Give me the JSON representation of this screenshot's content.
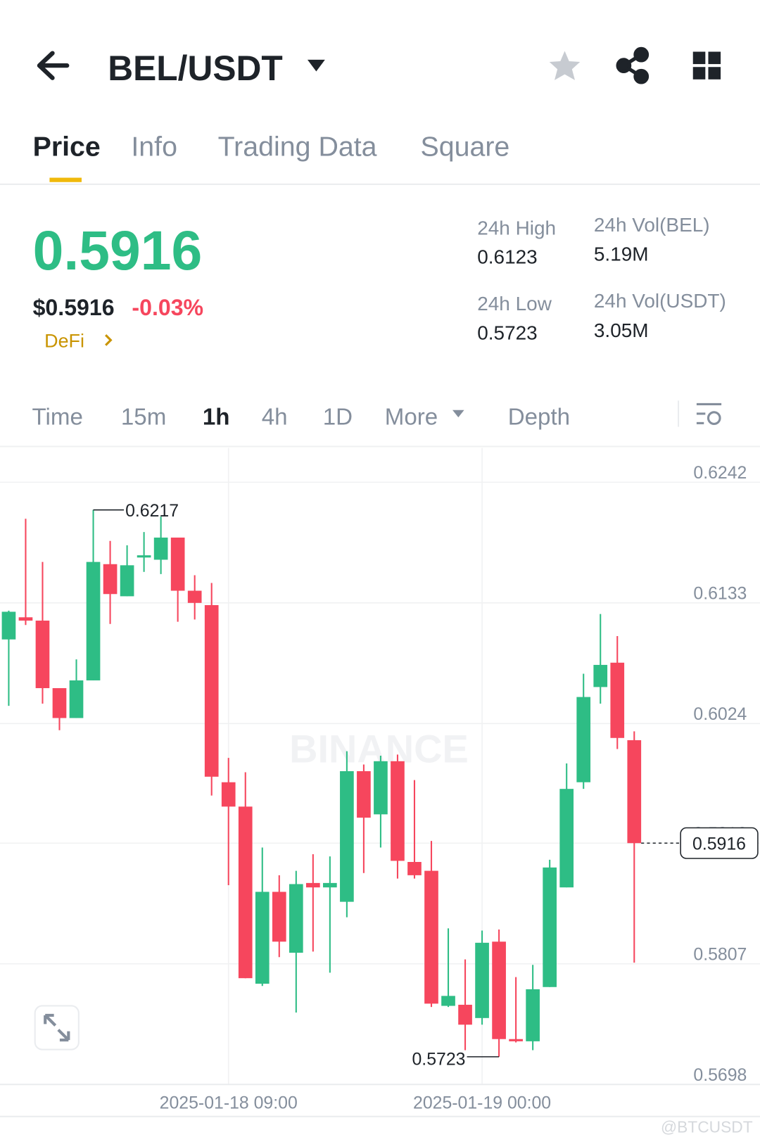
{
  "header": {
    "pair": "BEL/USDT"
  },
  "tabs": [
    "Price",
    "Info",
    "Trading Data",
    "Square"
  ],
  "ticker": {
    "price": "0.5916",
    "usd_price": "$0.5916",
    "change": "-0.03%",
    "tag": "DeFi"
  },
  "stats": [
    {
      "label": "24h High",
      "value": "0.6123"
    },
    {
      "label": "24h Vol(BEL)",
      "value": "5.19M"
    },
    {
      "label": "24h Low",
      "value": "0.5723"
    },
    {
      "label": "24h Vol(USDT)",
      "value": "3.05M"
    }
  ],
  "intervals": [
    "Time",
    "15m",
    "1h",
    "4h",
    "1D",
    "More",
    "Depth"
  ],
  "watermark": "BINANCE",
  "credit": "@BTCUSDT",
  "chart_data": {
    "type": "candlestick",
    "categories": [
      null,
      null,
      null,
      null,
      null,
      null,
      null,
      null,
      null,
      null,
      null,
      null,
      null,
      "2025-01-18 09:00",
      null,
      null,
      null,
      null,
      null,
      null,
      null,
      null,
      null,
      null,
      null,
      null,
      null,
      null,
      "2025-01-19 00:00",
      null,
      null,
      null,
      null,
      null,
      null,
      null,
      null,
      null
    ],
    "open": [
      0.61,
      0.612,
      0.6117,
      0.6056,
      0.6029,
      0.6063,
      0.6168,
      0.6139,
      0.6174,
      0.6172,
      0.6192,
      0.6144,
      0.6131,
      0.5971,
      0.5949,
      0.5789,
      0.5872,
      0.5817,
      0.588,
      0.5876,
      0.5863,
      0.5981,
      0.5942,
      0.599,
      0.5899,
      0.5891,
      0.5769,
      0.577,
      0.5758,
      0.5827,
      0.5739,
      0.5737,
      0.5786,
      0.5876,
      0.5971,
      0.6057,
      0.6079,
      0.6009
    ],
    "high": [
      0.6126,
      0.6209,
      0.617,
      0.6056,
      0.6082,
      0.6217,
      0.6189,
      0.6185,
      0.6197,
      0.6211,
      0.6192,
      0.6158,
      0.6151,
      0.5993,
      0.598,
      0.5912,
      0.5887,
      0.5891,
      0.5906,
      0.5904,
      0.5999,
      0.5987,
      0.5995,
      0.5996,
      0.5973,
      0.5918,
      0.5839,
      0.5811,
      0.5837,
      0.5838,
      0.5795,
      0.5806,
      0.5901,
      0.5988,
      0.6069,
      0.6123,
      0.6103,
      0.6017
    ],
    "low": [
      0.604,
      0.6113,
      0.6042,
      0.6018,
      0.6029,
      0.6063,
      0.6114,
      0.6139,
      0.6161,
      0.6159,
      0.6116,
      0.6118,
      0.5959,
      0.5878,
      0.5794,
      0.5787,
      0.5813,
      0.5763,
      0.5818,
      0.5799,
      0.5849,
      0.5889,
      0.5912,
      0.5884,
      0.5884,
      0.5768,
      0.5768,
      0.5729,
      0.5752,
      0.5723,
      0.5736,
      0.5729,
      0.5786,
      0.5876,
      0.5965,
      0.6042,
      0.6001,
      0.5808
    ],
    "close": [
      0.6125,
      0.6117,
      0.6056,
      0.6029,
      0.6063,
      0.617,
      0.6141,
      0.6167,
      0.6176,
      0.6192,
      0.6144,
      0.6133,
      0.5976,
      0.5949,
      0.5794,
      0.5872,
      0.5827,
      0.5879,
      0.5876,
      0.588,
      0.5981,
      0.5939,
      0.599,
      0.59,
      0.5887,
      0.5771,
      0.5778,
      0.5752,
      0.5826,
      0.5739,
      0.5737,
      0.5784,
      0.5894,
      0.5965,
      0.6048,
      0.6077,
      0.6011,
      0.5916
    ],
    "up_color": "#2ebd85",
    "down_color": "#f6465d",
    "ylim": [
      0.5698,
      0.6273
    ],
    "yticks": [
      0.6242,
      0.6133,
      0.6024,
      0.5916,
      0.5807,
      0.5698
    ],
    "grid": true,
    "annotations": {
      "high": 0.6217,
      "low": 0.5723,
      "last": 0.5916
    }
  }
}
